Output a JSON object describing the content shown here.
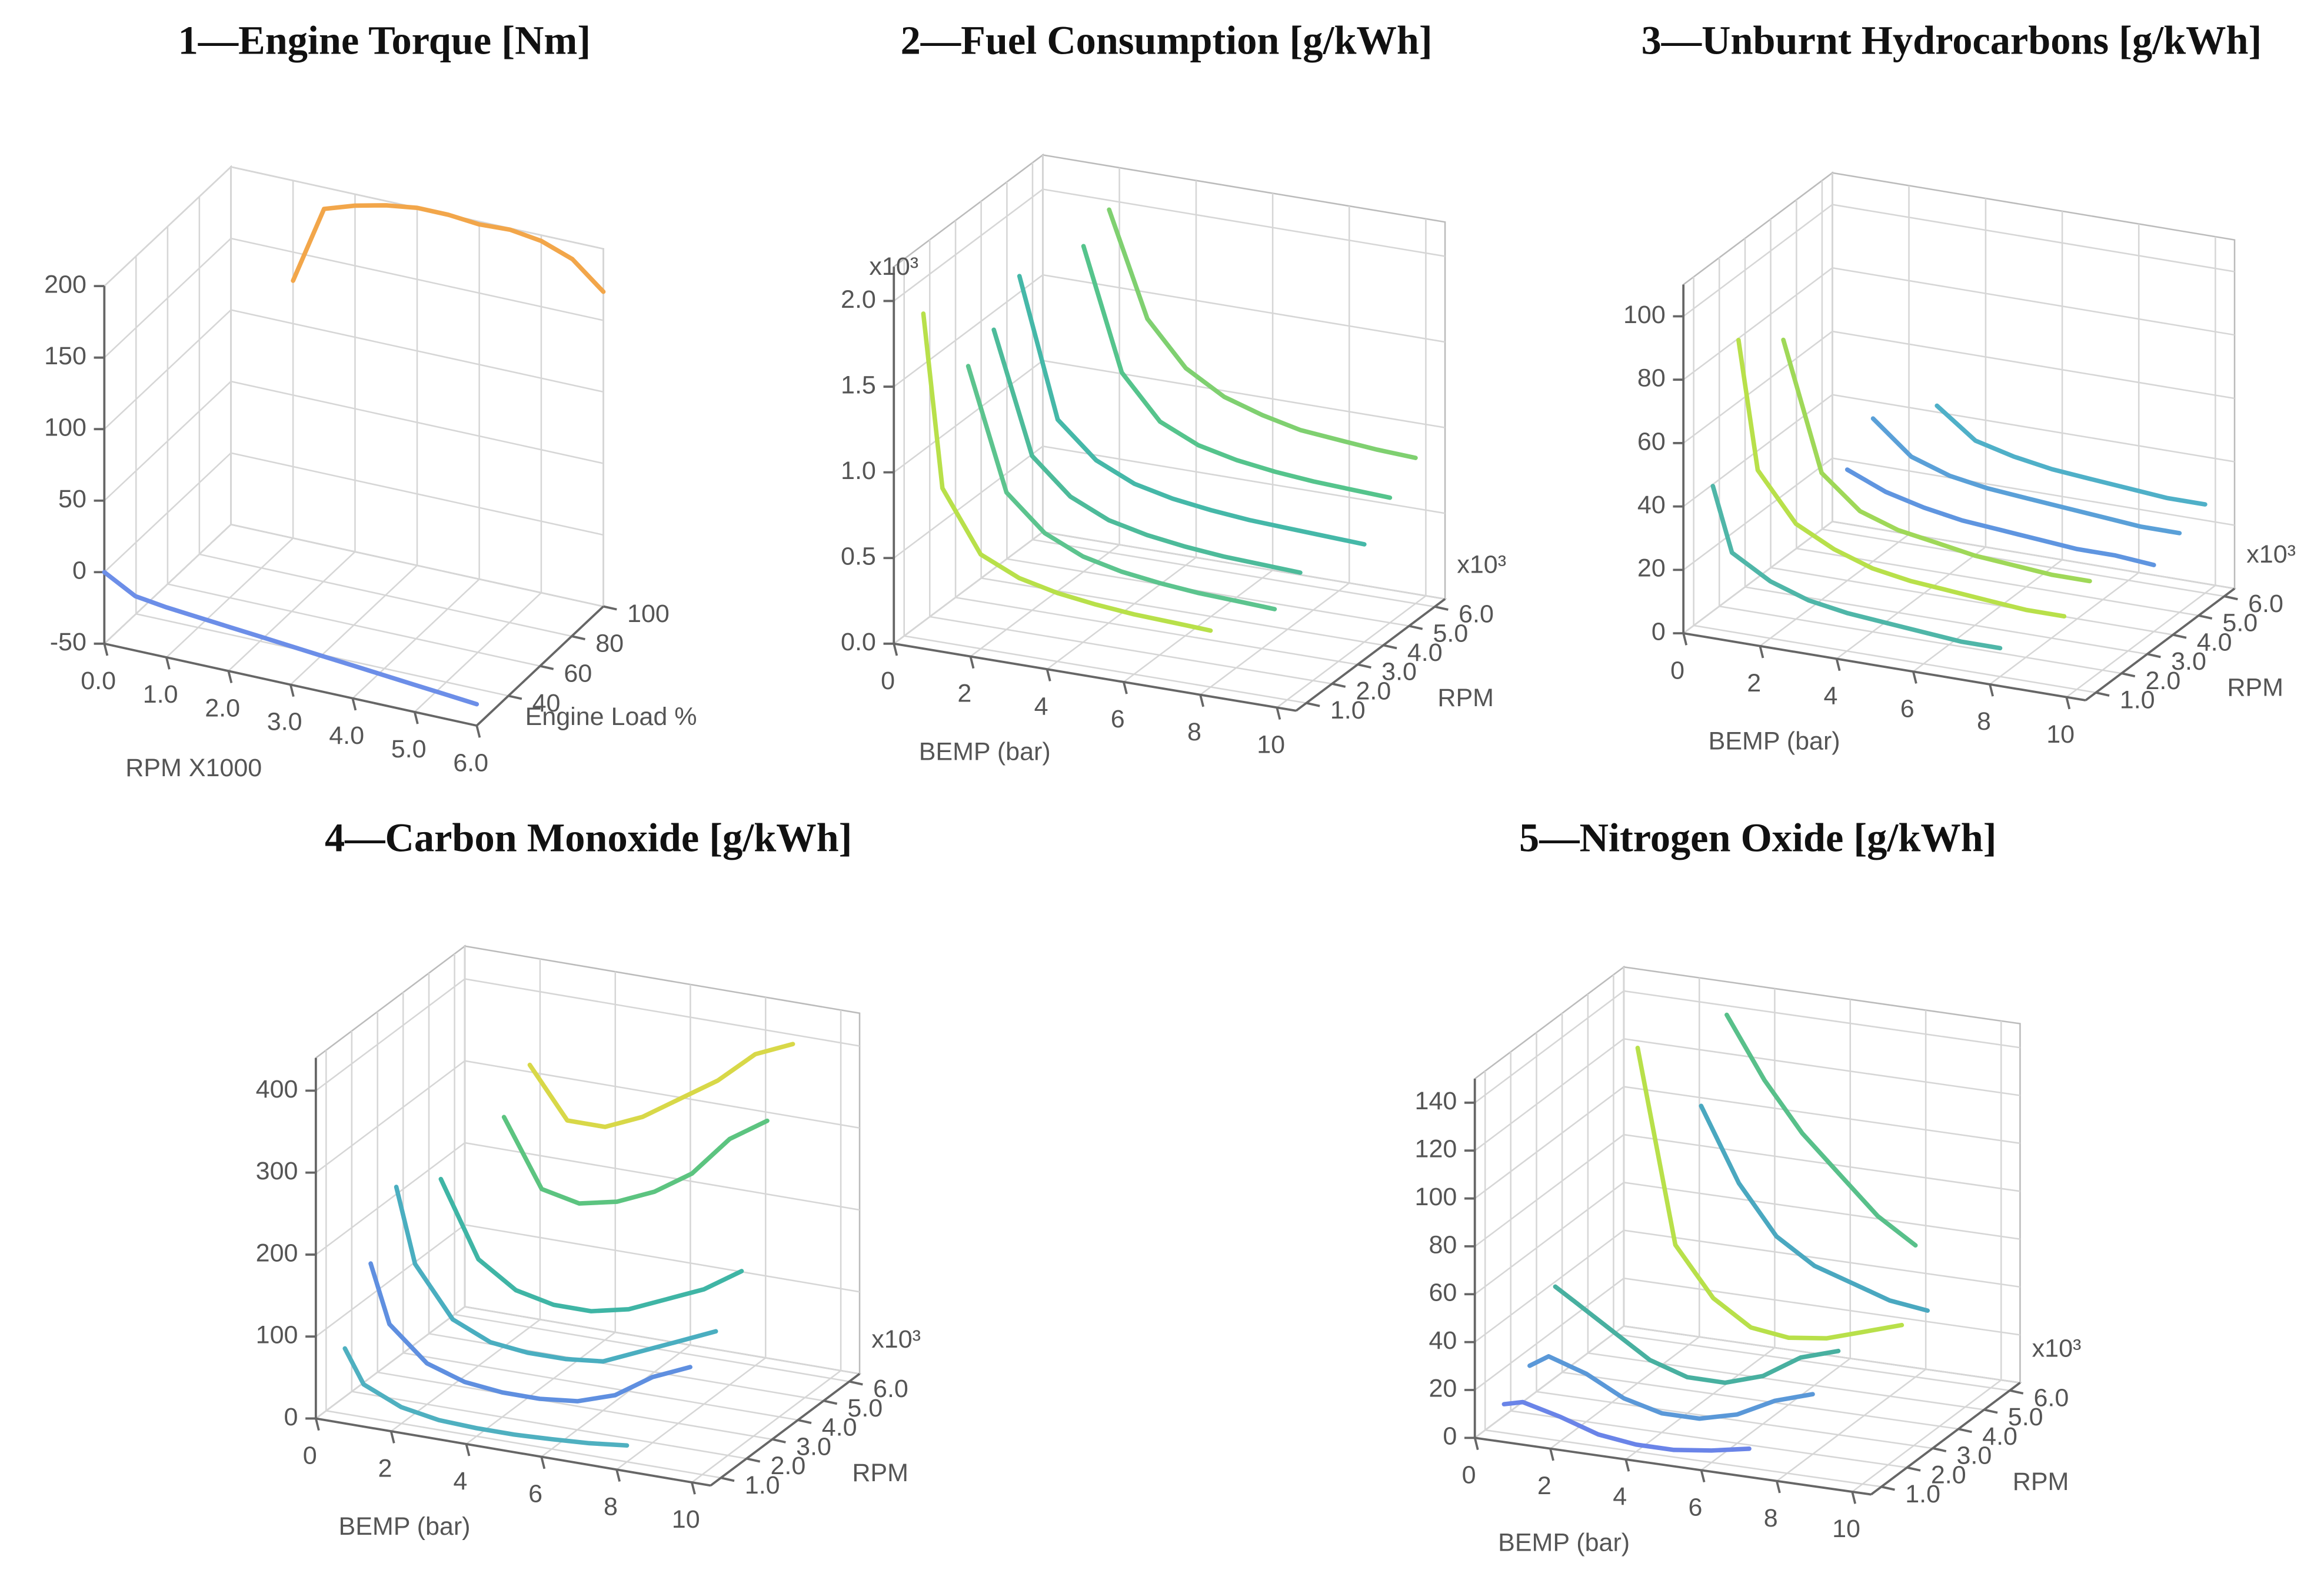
{
  "chart_data": [
    {
      "type": "line3d",
      "title": "1—Engine Torque [Nm]",
      "xlabel": "RPM X1000",
      "ylabel": "Engine Load %",
      "xlim": [
        0,
        6
      ],
      "ylim": [
        20,
        100
      ],
      "zlim": [
        -50,
        200
      ],
      "xticks": [
        {
          "value": 0,
          "label": "0.0"
        },
        {
          "value": 1,
          "label": "1.0"
        },
        {
          "value": 2,
          "label": "2.0"
        },
        {
          "value": 3,
          "label": "3.0"
        },
        {
          "value": 4,
          "label": "4.0"
        },
        {
          "value": 5,
          "label": "5.0"
        },
        {
          "value": 6,
          "label": "6.0"
        }
      ],
      "yticks": [
        40,
        60,
        80,
        100
      ],
      "zticks": [
        -50,
        0,
        50,
        100,
        150,
        200
      ],
      "grid": true,
      "x": [
        0,
        0.5,
        1,
        1.5,
        2,
        2.5,
        3,
        3.5,
        4,
        4.5,
        5,
        5.5,
        6
      ],
      "series": [
        {
          "y": 20,
          "color": "#6c8ee8",
          "values": [
            0,
            -12,
            -15,
            -17,
            -19,
            -21,
            -23,
            -25,
            -27,
            -29,
            -31,
            -33,
            -35
          ]
        },
        {
          "y": 100,
          "color": "#f2a64a",
          "values": [
            null,
            null,
            130,
            185,
            192,
            197,
            200,
            200,
            198,
            199,
            196,
            188,
            170
          ]
        }
      ]
    },
    {
      "type": "line3d",
      "title": "2—Fuel Consumption [g/kWh]",
      "xlabel": "BEMP (bar)",
      "ylabel": "RPM",
      "zmult": "x10³",
      "ymult": "x10³",
      "xlim": [
        0,
        10.5
      ],
      "ylim": [
        0.6,
        6.4
      ],
      "zlim": [
        0,
        2.2
      ],
      "xticks": [
        0,
        2,
        4,
        6,
        8,
        10
      ],
      "yticks": [
        {
          "value": 1,
          "label": "1.0"
        },
        {
          "value": 2,
          "label": "2.0"
        },
        {
          "value": 3,
          "label": "3.0"
        },
        {
          "value": 4,
          "label": "4.0"
        },
        {
          "value": 5,
          "label": "5.0"
        },
        {
          "value": 6,
          "label": "6.0"
        }
      ],
      "zticks": [
        {
          "value": 0,
          "label": "0.0"
        },
        {
          "value": 0.5,
          "label": "0.5"
        },
        {
          "value": 1,
          "label": "1.0"
        },
        {
          "value": 1.5,
          "label": "1.5"
        },
        {
          "value": 2,
          "label": "2.0"
        }
      ],
      "grid": true,
      "x": [
        0.5,
        1,
        2,
        3,
        4,
        5,
        6,
        7,
        8,
        9,
        10
      ],
      "series": [
        {
          "y": 1,
          "color": "#b8e04a",
          "values": [
            1.9,
            0.9,
            0.55,
            0.45,
            0.4,
            0.37,
            0.35,
            0.34,
            0.33,
            null,
            null
          ]
        },
        {
          "y": 2,
          "color": "#5cc48e",
          "values": [
            null,
            1.5,
            0.8,
            0.6,
            0.5,
            0.45,
            0.42,
            0.4,
            0.39,
            0.38,
            null
          ]
        },
        {
          "y": 3,
          "color": "#4dbb9a",
          "values": [
            null,
            1.6,
            0.9,
            0.7,
            0.6,
            0.55,
            0.52,
            0.5,
            0.49,
            0.48,
            null
          ]
        },
        {
          "y": 4,
          "color": "#45b8a8",
          "values": [
            null,
            1.8,
            1.0,
            0.8,
            0.7,
            0.65,
            0.62,
            0.6,
            0.59,
            0.58,
            0.57
          ]
        },
        {
          "y": 5,
          "color": "#55c48c",
          "values": [
            null,
            null,
            1.9,
            1.2,
            0.95,
            0.85,
            0.8,
            0.77,
            0.75,
            0.74,
            0.73
          ]
        },
        {
          "y": 6,
          "color": "#7fd070",
          "values": [
            null,
            null,
            2.0,
            1.4,
            1.15,
            1.02,
            0.95,
            0.9,
            0.88,
            0.86,
            0.85
          ]
        }
      ]
    },
    {
      "type": "line3d",
      "title": "3—Unburnt Hydrocarbons [g/kWh]",
      "xlabel": "BEMP (bar)",
      "ylabel": "RPM",
      "ymult": "x10³",
      "xlim": [
        0,
        10.5
      ],
      "ylim": [
        0.6,
        6.4
      ],
      "zlim": [
        0,
        110
      ],
      "xticks": [
        0,
        2,
        4,
        6,
        8,
        10
      ],
      "yticks": [
        {
          "value": 1,
          "label": "1.0"
        },
        {
          "value": 2,
          "label": "2.0"
        },
        {
          "value": 3,
          "label": "3.0"
        },
        {
          "value": 4,
          "label": "4.0"
        },
        {
          "value": 5,
          "label": "5.0"
        },
        {
          "value": 6,
          "label": "6.0"
        }
      ],
      "zticks": [
        0,
        20,
        40,
        60,
        80,
        100
      ],
      "grid": true,
      "x": [
        0.5,
        1,
        2,
        3,
        4,
        5,
        6,
        7,
        8,
        9,
        10
      ],
      "series": [
        {
          "y": 1,
          "color": "#4fb6a8",
          "values": [
            45,
            25,
            18,
            14,
            12,
            11,
            10,
            9,
            9,
            null,
            null
          ]
        },
        {
          "y": 2,
          "color": "#b8e04a",
          "values": [
            85,
            45,
            30,
            24,
            20,
            18,
            17,
            16,
            15,
            15,
            null
          ]
        },
        {
          "y": 3,
          "color": "#9fd858",
          "values": [
            null,
            80,
            40,
            30,
            26,
            24,
            22,
            21,
            20,
            20,
            null
          ]
        },
        {
          "y": 4,
          "color": "#5f95e0",
          "values": [
            null,
            null,
            35,
            30,
            27,
            25,
            24,
            23,
            22,
            22,
            21
          ]
        },
        {
          "y": 5,
          "color": "#5aa0d8",
          "values": [
            null,
            null,
            45,
            35,
            31,
            29,
            28,
            27,
            26,
            25,
            25
          ]
        },
        {
          "y": 6,
          "color": "#4fb0c8",
          "values": [
            null,
            null,
            null,
            45,
            36,
            33,
            31,
            30,
            29,
            28,
            28
          ]
        }
      ]
    },
    {
      "type": "line3d",
      "title": "4—Carbon Monoxide [g/kWh]",
      "xlabel": "BEMP (bar)",
      "ylabel": "RPM",
      "ymult": "x10³",
      "xlim": [
        0,
        10.5
      ],
      "ylim": [
        0.6,
        6.4
      ],
      "zlim": [
        0,
        440
      ],
      "xticks": [
        0,
        2,
        4,
        6,
        8,
        10
      ],
      "yticks": [
        {
          "value": 1,
          "label": "1.0"
        },
        {
          "value": 2,
          "label": "2.0"
        },
        {
          "value": 3,
          "label": "3.0"
        },
        {
          "value": 4,
          "label": "4.0"
        },
        {
          "value": 5,
          "label": "5.0"
        },
        {
          "value": 6,
          "label": "6.0"
        }
      ],
      "zticks": [
        0,
        100,
        200,
        300,
        400
      ],
      "grid": true,
      "x": [
        0.5,
        1,
        2,
        3,
        4,
        5,
        6,
        7,
        8,
        9,
        10
      ],
      "series": [
        {
          "y": 1,
          "color": "#4fb0c0",
          "values": [
            80,
            40,
            20,
            12,
            10,
            10,
            12,
            15,
            20,
            null,
            null
          ]
        },
        {
          "y": 2,
          "color": "#5f8fe0",
          "values": [
            160,
            90,
            50,
            35,
            30,
            30,
            35,
            50,
            80,
            100,
            null
          ]
        },
        {
          "y": 3,
          "color": "#4aaec0",
          "values": [
            230,
            140,
            80,
            60,
            55,
            55,
            60,
            80,
            100,
            120,
            null
          ]
        },
        {
          "y": 4,
          "color": "#3fb5a5",
          "values": [
            null,
            220,
            130,
            100,
            90,
            90,
            100,
            120,
            140,
            170,
            null
          ]
        },
        {
          "y": 5,
          "color": "#5cc480",
          "values": [
            null,
            null,
            280,
            200,
            190,
            200,
            220,
            250,
            300,
            330,
            null
          ]
        },
        {
          "y": 6,
          "color": "#d8d848",
          "values": [
            null,
            null,
            320,
            260,
            260,
            280,
            310,
            340,
            380,
            400,
            null
          ]
        }
      ]
    },
    {
      "type": "line3d",
      "title": "5—Nitrogen Oxide [g/kWh]",
      "xlabel": "BEMP (bar)",
      "ylabel": "RPM",
      "ymult": "x10³",
      "xlim": [
        0,
        10.5
      ],
      "ylim": [
        0.6,
        6.4
      ],
      "zlim": [
        0,
        150
      ],
      "xticks": [
        0,
        2,
        4,
        6,
        8,
        10
      ],
      "yticks": [
        {
          "value": 1,
          "label": "1.0"
        },
        {
          "value": 2,
          "label": "2.0"
        },
        {
          "value": 3,
          "label": "3.0"
        },
        {
          "value": 4,
          "label": "4.0"
        },
        {
          "value": 5,
          "label": "5.0"
        },
        {
          "value": 6,
          "label": "6.0"
        }
      ],
      "zticks": [
        0,
        20,
        40,
        60,
        80,
        100,
        120,
        140
      ],
      "grid": true,
      "x": [
        0.5,
        1,
        2,
        3,
        4,
        5,
        6,
        7,
        8,
        9,
        10
      ],
      "series": [
        {
          "y": 1,
          "color": "#6a84e8",
          "values": [
            12,
            14,
            10,
            5,
            3,
            3,
            5,
            8,
            null,
            null,
            null
          ]
        },
        {
          "y": 2,
          "color": "#5a98d8",
          "values": [
            20,
            25,
            20,
            12,
            8,
            8,
            12,
            20,
            25,
            null,
            null
          ]
        },
        {
          "y": 3,
          "color": "#48b0a0",
          "values": [
            45,
            40,
            30,
            20,
            15,
            15,
            20,
            30,
            35,
            null,
            null
          ]
        },
        {
          "y": 4,
          "color": "#b8e04a",
          "values": [
            null,
            null,
            140,
            60,
            40,
            30,
            28,
            30,
            35,
            40,
            null
          ]
        },
        {
          "y": 5,
          "color": "#4aa8c0",
          "values": [
            null,
            null,
            null,
            110,
            80,
            60,
            50,
            45,
            40,
            38,
            null
          ]
        },
        {
          "y": 6,
          "color": "#58c08a",
          "values": [
            null,
            null,
            null,
            140,
            115,
            95,
            80,
            65,
            55,
            null,
            null
          ]
        }
      ]
    }
  ]
}
